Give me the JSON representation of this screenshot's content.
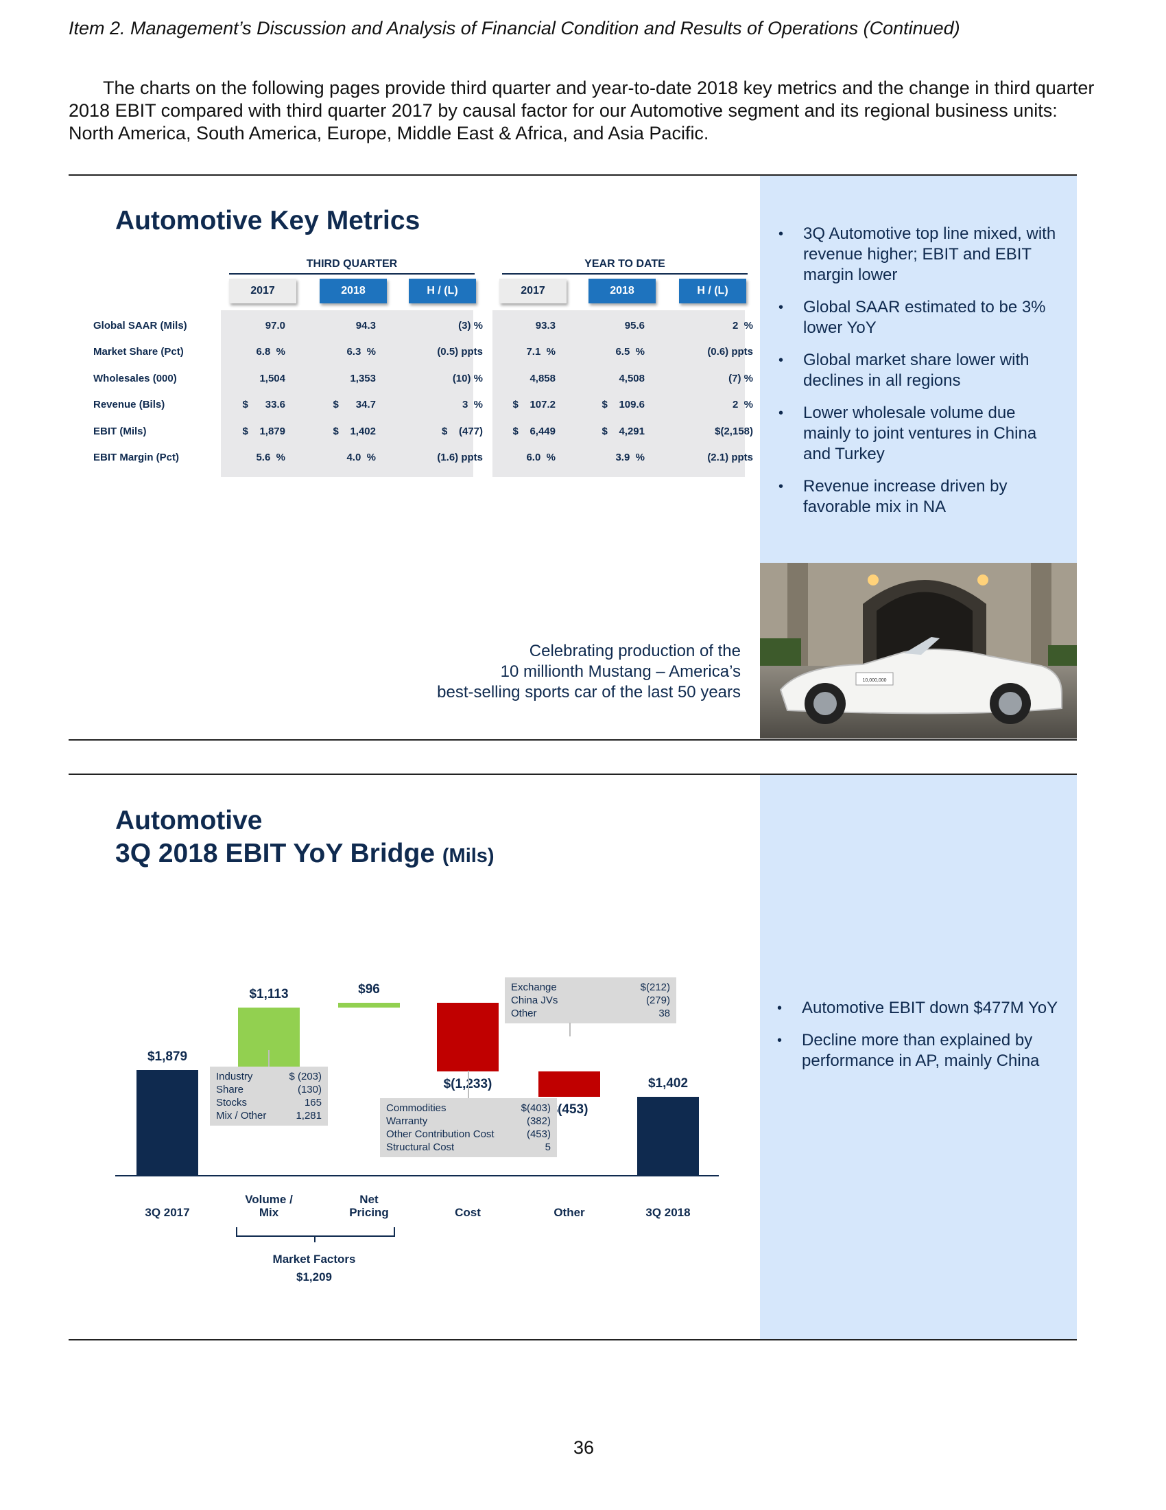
{
  "header": "Item 2.  Management’s Discussion and Analysis of Financial Condition and Results of Operations (Continued)",
  "intro": "The charts on the following pages provide third quarter and year-to-date 2018 key metrics and the change in third quarter 2018 EBIT compared with third quarter 2017 by causal factor for our Automotive segment and its regional business units:  North America, South America, Europe, Middle East & Africa, and Asia Pacific.",
  "key_metrics": {
    "title": "Automotive Key Metrics",
    "groups": [
      {
        "label": "THIRD QUARTER",
        "columns": [
          "2017",
          "2018",
          "H / (L)"
        ]
      },
      {
        "label": "YEAR TO DATE",
        "columns": [
          "2017",
          "2018",
          "H / (L)"
        ]
      }
    ],
    "rows": [
      {
        "label": "Global SAAR (Mils)",
        "tq": [
          "97.0",
          "94.3",
          "(3) %"
        ],
        "ytd": [
          "93.3",
          "95.6",
          "2  %"
        ]
      },
      {
        "label": "Market Share (Pct)",
        "tq": [
          "6.8  %",
          "6.3  %",
          "(0.5) ppts"
        ],
        "ytd": [
          "7.1  %",
          "6.5  %",
          "(0.6) ppts"
        ]
      },
      {
        "label": "Wholesales (000)",
        "tq": [
          "1,504",
          "1,353",
          "(10) %"
        ],
        "ytd": [
          "4,858",
          "4,508",
          "(7) %"
        ]
      },
      {
        "label": "Revenue (Bils)",
        "tq": [
          "$      33.6",
          "$      34.7",
          "3  %"
        ],
        "ytd": [
          "$    107.2",
          "$    109.6",
          "2  %"
        ]
      },
      {
        "label": "EBIT (Mils)",
        "tq": [
          "$    1,879",
          "$    1,402",
          "$    (477)"
        ],
        "ytd": [
          "$    6,449",
          "$    4,291",
          "$(2,158)"
        ]
      },
      {
        "label": "EBIT Margin (Pct)",
        "tq": [
          "5.6  %",
          "4.0  %",
          "(1.6) ppts"
        ],
        "ytd": [
          "6.0  %",
          "3.9  %",
          "(2.1) ppts"
        ]
      }
    ],
    "bullets": [
      "3Q Automotive top line mixed, with revenue higher; EBIT and EBIT margin lower",
      "Global SAAR estimated to be 3% lower YoY",
      "Global market share lower with declines in all regions",
      "Lower wholesale volume due mainly to joint ventures in China and Turkey",
      "Revenue increase driven by favorable mix in NA"
    ],
    "caption": [
      "Celebrating production of the",
      "10 millionth Mustang – America’s",
      "best-selling sports car of the last 50 years"
    ],
    "plate_text": "10,000,000"
  },
  "bridge": {
    "title_line1": "Automotive",
    "title_line2": "3Q 2018 EBIT YoY Bridge",
    "title_unit": "(Mils)",
    "bullets": [
      "Automotive EBIT down $477M YoY",
      "Decline more than explained by performance in AP, mainly China"
    ],
    "volume_box": [
      [
        "Industry",
        "$  (203)"
      ],
      [
        "Share",
        "(130)"
      ],
      [
        "Stocks",
        "165"
      ],
      [
        "Mix / Other",
        "1,281"
      ]
    ],
    "cost_box": [
      [
        "Commodities",
        "$(403)"
      ],
      [
        "Warranty",
        "(382)"
      ],
      [
        "Other Contribution Cost",
        "(453)"
      ],
      [
        "Structural Cost",
        "5"
      ]
    ],
    "other_box": [
      [
        "Exchange",
        "$(212)"
      ],
      [
        "China JVs",
        "(279)"
      ],
      [
        "Other",
        "38"
      ]
    ],
    "market_factors": {
      "label": "Market Factors",
      "value": "$1,209"
    }
  },
  "chart_data": {
    "type": "bar",
    "subtype": "waterfall",
    "title": "3Q 2018 EBIT YoY Bridge",
    "ylabel": "(Mils)",
    "categories": [
      "3Q 2017",
      "Volume / Mix",
      "Net Pricing",
      "Cost",
      "Other",
      "3Q 2018"
    ],
    "values": [
      1879,
      1113,
      96,
      -1233,
      -453,
      1402
    ],
    "value_labels": [
      "$1,879",
      "$1,113",
      "$96",
      "$(1,233)",
      "$(453)",
      "$1,402"
    ],
    "kinds": [
      "total",
      "delta",
      "delta",
      "delta",
      "delta",
      "total"
    ],
    "ylim": [
      0,
      3200
    ],
    "colors": {
      "total": "#0f2a4f",
      "increase": "#92d050",
      "decrease": "#c00000"
    }
  },
  "page_number": "36"
}
